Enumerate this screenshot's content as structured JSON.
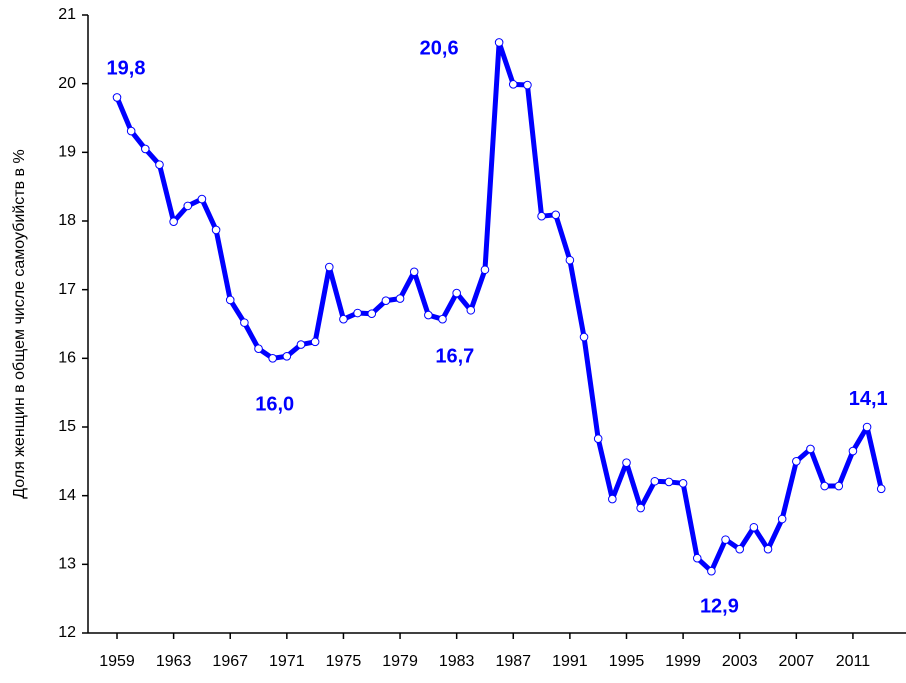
{
  "chart_data": {
    "type": "line",
    "y_label": "Доля женщин в общем числе самоубийств в %",
    "x": [
      1959,
      1960,
      1961,
      1962,
      1963,
      1964,
      1965,
      1966,
      1967,
      1968,
      1969,
      1970,
      1971,
      1972,
      1973,
      1974,
      1975,
      1976,
      1977,
      1978,
      1979,
      1980,
      1981,
      1982,
      1983,
      1984,
      1985,
      1986,
      1987,
      1988,
      1989,
      1990,
      1991,
      1992,
      1993,
      1994,
      1995,
      1996,
      1997,
      1998,
      1999,
      2000,
      2001,
      2002,
      2003,
      2004,
      2005,
      2006,
      2007,
      2008,
      2009,
      2010,
      2011,
      2012,
      2013
    ],
    "series": [
      {
        "name": "Доля женщин",
        "color": "#0000ff",
        "values": [
          19.8,
          19.31,
          19.05,
          18.82,
          17.99,
          18.22,
          18.32,
          17.87,
          16.85,
          16.52,
          16.14,
          16.0,
          16.03,
          16.2,
          16.24,
          17.33,
          16.57,
          16.66,
          16.65,
          16.84,
          16.87,
          17.26,
          16.63,
          16.57,
          16.95,
          16.7,
          17.29,
          20.6,
          19.99,
          19.98,
          18.07,
          18.09,
          17.43,
          16.31,
          14.83,
          13.95,
          14.48,
          13.82,
          14.21,
          14.2,
          14.18,
          13.09,
          12.9,
          13.36,
          13.22,
          13.54,
          13.22,
          13.66,
          14.5,
          14.68,
          14.14,
          14.14,
          14.65,
          15.0,
          14.1
        ],
        "value_labels": [
          "19,8",
          null,
          null,
          null,
          null,
          null,
          null,
          null,
          null,
          null,
          null,
          "16,0",
          null,
          null,
          null,
          null,
          null,
          null,
          null,
          null,
          null,
          null,
          null,
          null,
          null,
          "16,7",
          null,
          "20,6",
          null,
          null,
          null,
          null,
          null,
          null,
          null,
          null,
          null,
          null,
          null,
          null,
          null,
          null,
          "12,9",
          null,
          null,
          null,
          null,
          null,
          null,
          null,
          null,
          null,
          null,
          null,
          "14,1"
        ]
      }
    ],
    "xlim": [
      1956.95,
      2014.75
    ],
    "ylim": [
      12,
      21
    ],
    "xticks": [
      1959,
      1963,
      1967,
      1971,
      1975,
      1979,
      1983,
      1987,
      1991,
      1995,
      1999,
      2003,
      2007,
      2011
    ],
    "yticks": [
      12,
      13,
      14,
      15,
      16,
      17,
      18,
      19,
      20,
      21
    ]
  }
}
